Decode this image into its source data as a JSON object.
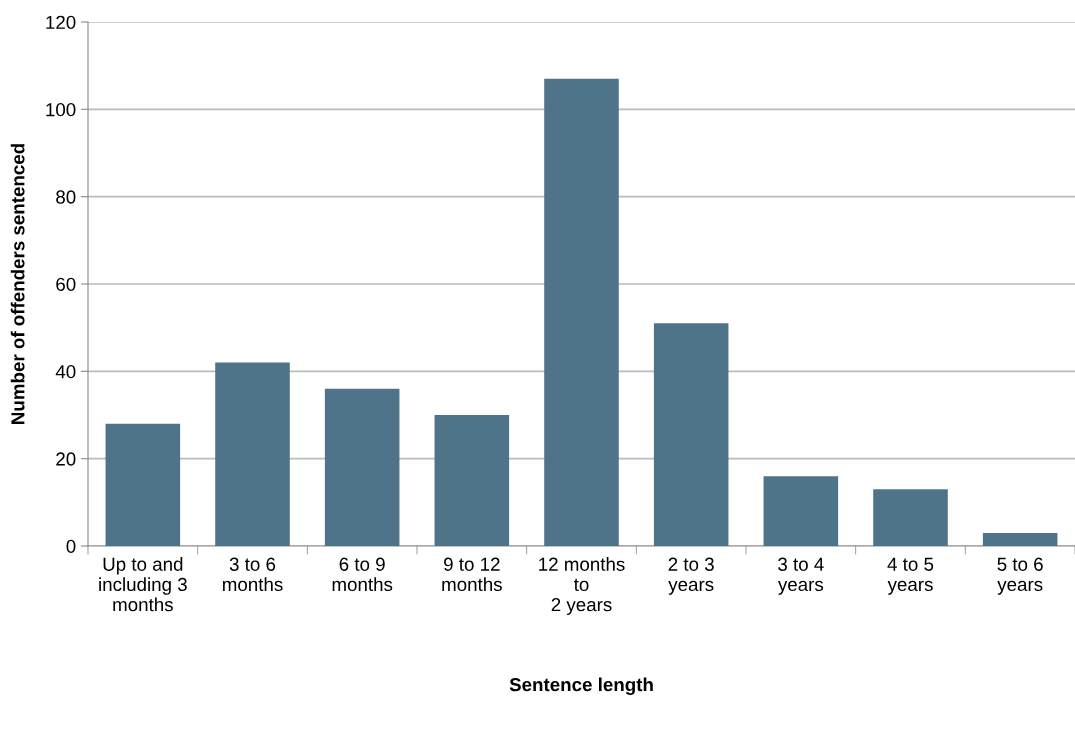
{
  "chart_data": {
    "type": "bar",
    "xlabel": "Sentence length",
    "ylabel": "Number of offenders sentenced",
    "categories": [
      "Up to and\nincluding 3\nmonths",
      "3 to 6\nmonths",
      "6 to 9\nmonths",
      "9 to 12\nmonths",
      "12 months\nto\n2 years",
      "2 to 3\nyears",
      "3 to 4\nyears",
      "4 to 5\nyears",
      "5 to 6\nyears"
    ],
    "values": [
      28,
      42,
      36,
      30,
      107,
      51,
      16,
      13,
      3
    ],
    "color": "#4f7489",
    "ylim": [
      0,
      120
    ],
    "yticks": [
      0,
      20,
      40,
      60,
      80,
      100,
      120
    ],
    "grid": "y"
  }
}
